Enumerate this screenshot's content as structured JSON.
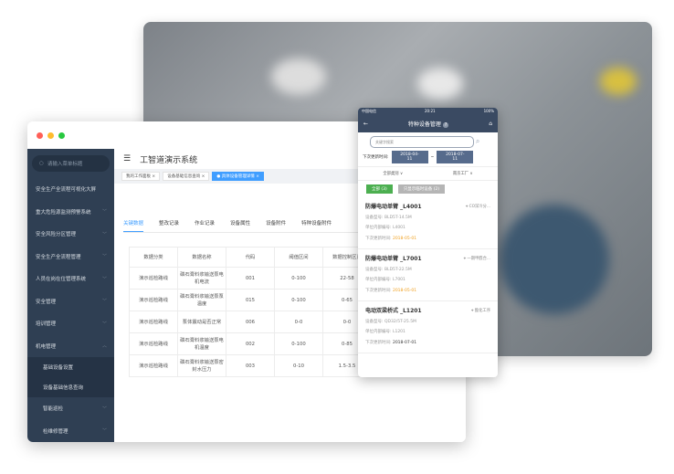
{
  "colors": {
    "sidebar": "#2f3f53",
    "accent": "#409eff",
    "phone_nav": "#3a4a62",
    "date_highlight": "#f0a020",
    "all_button": "#4caf50",
    "only_button": "#b5b5b5"
  },
  "desktop": {
    "search_placeholder": "请输入菜单标题",
    "menu": [
      "安全生产全流程可视化大屏",
      "重大危险源监测预警系统",
      "安全风险分区管理",
      "安全生产全流程管理",
      "人员在岗在位管理系统",
      "安全管理",
      "培训管理",
      "机电管理"
    ],
    "submenu": [
      "基础设备设置",
      "设备基础信息查询"
    ],
    "menu_after": [
      "智能巡检",
      "检维修管理"
    ],
    "app_title": "工智道演示系统",
    "tags": [
      "我的工作面板",
      "设备基础信息查询",
      "具体设备管理详情"
    ],
    "content_tabs": [
      "关键数据",
      "整改记录",
      "作业记录",
      "设备属性",
      "设备附件",
      "特种设备附件"
    ],
    "table": {
      "headers": [
        "数据分类",
        "数据名称",
        "代码",
        "阈值区间",
        "数据控制区间"
      ],
      "rows": [
        [
          "演示巡检路线",
          "磷石膏料浆输送泵电机电流",
          "001",
          "0-100",
          "22-58"
        ],
        [
          "演示巡检路线",
          "磷石膏料浆输送泵泵温度",
          "015",
          "0-100",
          "0-65"
        ],
        [
          "演示巡检路线",
          "泵体震动是否正常",
          "006",
          "0-0",
          "0-0"
        ],
        [
          "演示巡检路线",
          "磷石膏料浆输送泵电机温度",
          "002",
          "0-100",
          "0-85"
        ],
        [
          "演示巡检路线",
          "磷石膏料浆输送泵密封水压力",
          "003",
          "0-10",
          "1.5-3.5"
        ]
      ]
    }
  },
  "phone": {
    "carrier": "中国电信",
    "time": "20:21",
    "battery": "100%",
    "title": "特种设备管理",
    "search_placeholder": "关键字搜索",
    "date_label": "下次更新时间:",
    "date_from": "2018-04-11",
    "date_sep": "~",
    "date_to": "2018-07-11",
    "filter_category": "全部类别",
    "filter_factory": "南京工厂",
    "btn_all": "全部 (3)",
    "btn_only": "只显示临时设备 (2)",
    "items": [
      {
        "title": "防爆电动单臂 _L4001",
        "location": "CO深冷分...",
        "model_label": "设备型号:",
        "model": "BLD5T-14.5M",
        "code_label": "单位内部编号:",
        "code": "L4001",
        "next_label": "下次更新时间:",
        "next": "2018-05-01",
        "highlight": true
      },
      {
        "title": "防爆电动单臂 _L7001",
        "location": "一期甲醛合...",
        "model_label": "设备型号:",
        "model": "BLD5T-22.5M",
        "code_label": "单位内部编号:",
        "code": "L7001",
        "next_label": "下次更新时间:",
        "next": "2018-05-01",
        "highlight": true
      },
      {
        "title": "电动双梁桥式 _L1201",
        "location": "酯化工序",
        "model_label": "设备型号:",
        "model": "QD32/5T-25.5M",
        "code_label": "单位内部编号:",
        "code": "L1201",
        "next_label": "下次更新时间:",
        "next": "2018-07-01",
        "highlight": false
      }
    ]
  }
}
